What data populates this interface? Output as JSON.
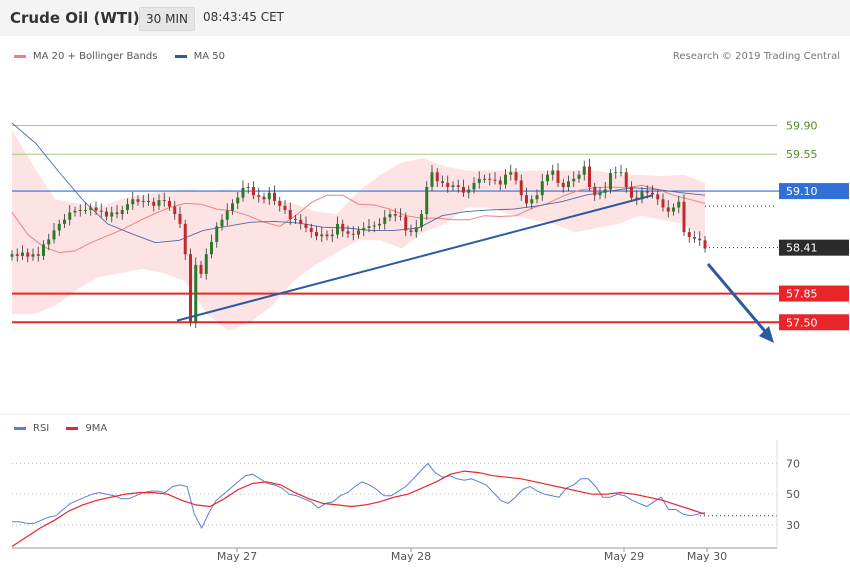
{
  "header": {
    "title": "Crude Oil (WTI)",
    "timeframe": "30 MIN",
    "time": "08:43:45 CET"
  },
  "legend": {
    "items": [
      {
        "label": "MA 20 + Bollinger Bands",
        "color": "#f08080"
      },
      {
        "label": "MA 50",
        "color": "#2c5aa0"
      }
    ],
    "credit": "Research © 2019 Trading Central"
  },
  "rsi_legend": {
    "items": [
      {
        "label": "RSI",
        "color": "#5b7fd6"
      },
      {
        "label": "9MA",
        "color": "#e8262a"
      }
    ]
  },
  "colors": {
    "up": "#2a7a2a",
    "down": "#c0282d",
    "bollinger": "#fde3e3",
    "ma20": "#f08080",
    "ma50": "#4a6aa8",
    "trend": "#2c5aa0",
    "level_blue": "#2f6fd8",
    "level_red": "#e8262a",
    "resistance_green": "#a8cc80"
  },
  "chart_data": [
    {
      "type": "candlestick",
      "title": "Crude Oil (WTI)",
      "timeframe": "30 MIN",
      "x_labels": [
        "May 27",
        "May 28",
        "May 29",
        "May 30"
      ],
      "ylim": [
        56.43,
        60.65
      ],
      "levels": [
        {
          "value": 59.9,
          "label": "59.90",
          "style": "resistance"
        },
        {
          "value": 59.55,
          "label": "59.55",
          "style": "resistance"
        },
        {
          "value": 59.1,
          "label": "59.10",
          "style": "pivot"
        },
        {
          "value": 58.41,
          "label": "58.41",
          "style": "last"
        },
        {
          "value": 57.85,
          "label": "57.85",
          "style": "support"
        },
        {
          "value": 57.5,
          "label": "57.50",
          "style": "support"
        }
      ],
      "series": [
        {
          "name": "Price",
          "values": [
            58.33,
            58.31,
            58.35,
            58.3,
            58.33,
            58.31,
            58.45,
            58.51,
            58.62,
            58.7,
            58.75,
            58.84,
            58.86,
            58.87,
            58.87,
            58.9,
            58.86,
            58.85,
            58.79,
            58.84,
            58.82,
            58.87,
            58.94,
            59.0,
            58.97,
            58.98,
            58.97,
            58.92,
            58.99,
            58.98,
            58.91,
            58.82,
            58.7,
            58.33,
            57.5,
            58.2,
            58.09,
            58.33,
            58.48,
            58.67,
            58.75,
            58.86,
            58.95,
            59.02,
            59.14,
            59.15,
            59.05,
            59.03,
            59.0,
            59.08,
            58.98,
            58.92,
            58.87,
            58.76,
            58.75,
            58.7,
            58.65,
            58.6,
            58.55,
            58.57,
            58.55,
            58.57,
            58.7,
            58.61,
            58.58,
            58.57,
            58.62,
            58.65,
            58.67,
            58.68,
            58.7,
            58.78,
            58.82,
            58.8,
            58.79,
            58.62,
            58.6,
            58.66,
            58.82,
            59.15,
            59.33,
            59.22,
            59.2,
            59.15,
            59.17,
            59.15,
            59.08,
            59.12,
            59.2,
            59.25,
            59.25,
            59.24,
            59.23,
            59.18,
            59.3,
            59.33,
            59.23,
            59.05,
            58.95,
            59.0,
            59.05,
            59.22,
            59.3,
            59.35,
            59.2,
            59.15,
            59.22,
            59.25,
            59.3,
            59.4,
            59.15,
            59.05,
            59.08,
            59.12,
            59.32,
            59.33,
            59.33,
            59.15,
            59.02,
            59.0,
            59.1,
            59.08,
            59.06,
            59.0,
            58.9,
            58.85,
            58.9,
            58.97,
            58.6,
            58.54,
            58.52,
            58.5,
            58.4
          ]
        },
        {
          "name": "MA 20",
          "values": [
            58.84,
            58.57,
            58.42,
            58.35,
            58.37,
            58.47,
            58.55,
            58.63,
            58.73,
            58.82,
            58.9,
            58.95,
            58.94,
            58.88,
            58.86,
            58.8,
            58.72,
            58.67,
            58.8,
            58.96,
            59.05,
            59.05,
            58.94,
            58.93,
            58.88,
            58.8,
            58.77,
            58.77,
            58.75,
            58.75,
            58.8,
            58.79,
            58.8,
            58.89,
            58.95,
            59.04,
            59.11,
            59.14,
            59.15,
            59.14,
            59.17,
            59.12,
            59.05,
            59.0,
            58.95
          ]
        },
        {
          "name": "MA 50",
          "values": [
            59.93,
            59.68,
            59.32,
            58.98,
            58.7,
            58.58,
            58.47,
            58.5,
            58.62,
            58.67,
            58.72,
            58.73,
            58.71,
            58.66,
            58.65,
            58.62,
            58.62,
            58.65,
            58.8,
            58.85,
            58.87,
            58.88,
            58.92,
            58.97,
            59.05,
            59.1,
            59.14,
            59.12,
            59.08,
            59.05
          ]
        },
        {
          "name": "Upper Bollinger",
          "values": [
            59.85,
            59.4,
            59.0,
            58.95,
            58.9,
            59.0,
            59.05,
            59.1,
            59.12,
            59.1,
            59.12,
            59.08,
            59.0,
            58.95,
            58.85,
            58.82,
            59.1,
            59.3,
            59.45,
            59.5,
            59.4,
            59.35,
            59.35,
            59.35,
            59.35,
            59.35,
            59.35,
            59.35,
            59.3,
            59.3,
            59.28,
            59.3,
            59.2
          ]
        },
        {
          "name": "Lower Bollinger",
          "values": [
            57.6,
            57.6,
            57.7,
            57.9,
            58.05,
            58.1,
            58.15,
            58.1,
            58.0,
            57.6,
            57.4,
            57.5,
            57.7,
            58.0,
            58.2,
            58.35,
            58.5,
            58.5,
            58.4,
            58.6,
            58.7,
            58.9,
            58.9,
            58.82,
            58.75,
            58.7,
            58.6,
            58.65,
            58.7,
            58.8,
            58.75,
            58.7,
            58.5
          ]
        }
      ]
    },
    {
      "type": "line",
      "title": "RSI",
      "x_labels": [
        "May 27",
        "May 28",
        "May 29",
        "May 30"
      ],
      "ylim": [
        15,
        80
      ],
      "yticks": [
        30,
        50,
        70
      ],
      "series": [
        {
          "name": "RSI",
          "values": [
            32,
            32,
            31,
            31,
            33,
            35,
            36,
            40,
            44,
            46,
            48,
            50,
            51,
            50,
            49,
            47,
            47,
            49,
            51,
            52,
            52,
            51,
            55,
            56,
            55,
            37,
            28,
            38,
            46,
            50,
            54,
            58,
            62,
            63,
            60,
            57,
            56,
            54,
            50,
            49,
            47,
            45,
            41,
            44,
            45,
            49,
            51,
            55,
            58,
            56,
            53,
            49,
            49,
            52,
            55,
            60,
            65,
            70,
            64,
            61,
            62,
            60,
            59,
            60,
            58,
            56,
            51,
            46,
            44,
            48,
            53,
            55,
            52,
            50,
            49,
            48,
            54,
            56,
            60,
            60,
            55,
            48,
            48,
            50,
            49,
            46,
            44,
            42,
            45,
            48,
            40,
            40,
            37,
            36,
            37,
            38
          ]
        },
        {
          "name": "9MA",
          "values": [
            16,
            22,
            28,
            33,
            39,
            43,
            46,
            48,
            50,
            51,
            51,
            50,
            46,
            43,
            42,
            47,
            53,
            57,
            58,
            56,
            51,
            47,
            44,
            43,
            42,
            43,
            45,
            48,
            50,
            54,
            58,
            63,
            65,
            64,
            62,
            61,
            60,
            58,
            56,
            54,
            52,
            50,
            50,
            51,
            50,
            48,
            46,
            43,
            40,
            37
          ]
        }
      ]
    }
  ]
}
